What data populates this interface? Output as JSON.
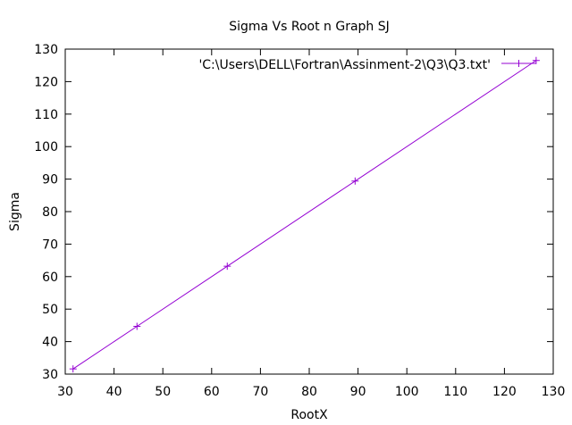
{
  "chart_data": {
    "type": "line",
    "title": "Sigma Vs Root n Graph SJ",
    "xlabel": "RootX",
    "ylabel": "Sigma",
    "xlim": [
      30,
      130
    ],
    "ylim": [
      30,
      130
    ],
    "xticks": [
      30,
      40,
      50,
      60,
      70,
      80,
      90,
      100,
      110,
      120,
      130
    ],
    "yticks": [
      30,
      40,
      50,
      60,
      70,
      80,
      90,
      100,
      110,
      120,
      130
    ],
    "grid": false,
    "legend_position": "top-right",
    "series": [
      {
        "name": "'C:\\Users\\DELL\\Fortran\\Assinment-2\\Q3\\Q3.txt'",
        "color": "#9400d3",
        "marker": "plus",
        "x": [
          31.6,
          44.7,
          63.2,
          89.4,
          126.5
        ],
        "y": [
          31.6,
          44.7,
          63.2,
          89.4,
          126.5
        ]
      }
    ]
  }
}
